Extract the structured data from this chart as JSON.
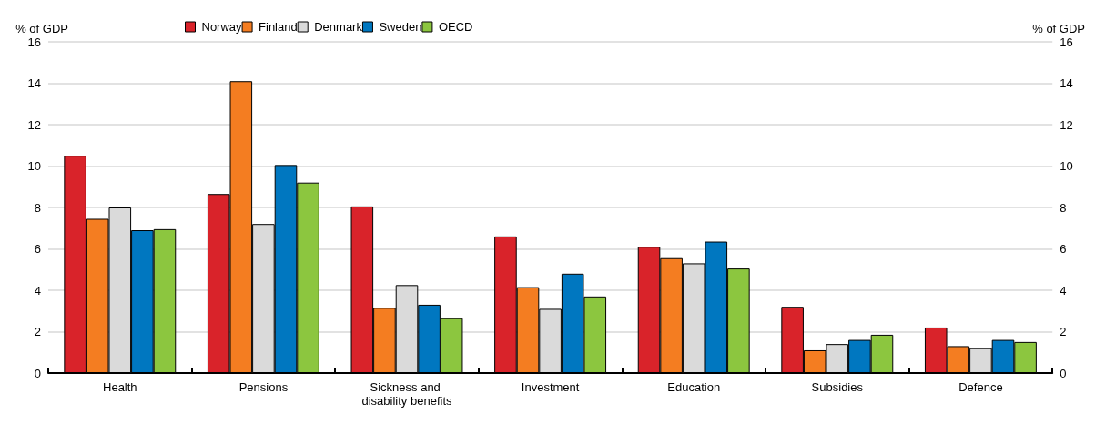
{
  "chart_data": {
    "type": "bar",
    "ylabel": "% of GDP",
    "y2label": "% of GDP",
    "categories": [
      "Health",
      "Pensions",
      "Sickness and disability benefits",
      "Investment",
      "Education",
      "Subsidies",
      "Defence"
    ],
    "series": [
      {
        "name": "Norway",
        "color": "#d9232a",
        "values": [
          10.5,
          8.65,
          8.05,
          6.6,
          6.1,
          3.2,
          2.2
        ]
      },
      {
        "name": "Finland",
        "color": "#f47d21",
        "values": [
          7.45,
          14.1,
          3.15,
          4.15,
          5.55,
          1.1,
          1.3
        ]
      },
      {
        "name": "Denmark",
        "color": "#dadada",
        "values": [
          8.0,
          7.2,
          4.25,
          3.1,
          5.3,
          1.4,
          1.2
        ]
      },
      {
        "name": "Sweden",
        "color": "#0077c0",
        "values": [
          6.9,
          10.05,
          3.3,
          4.8,
          6.35,
          1.6,
          1.6
        ]
      },
      {
        "name": "OECD",
        "color": "#8cc63f",
        "values": [
          6.95,
          9.2,
          2.65,
          3.7,
          5.05,
          1.85,
          1.5
        ]
      }
    ],
    "ylim": [
      0,
      16
    ],
    "yticks": [
      0,
      2,
      4,
      6,
      8,
      10,
      12,
      14,
      16
    ],
    "y2lim": [
      0,
      16
    ],
    "y2ticks": [
      0,
      2,
      4,
      6,
      8,
      10,
      12,
      14,
      16
    ],
    "grid": "y",
    "legend": "top"
  }
}
